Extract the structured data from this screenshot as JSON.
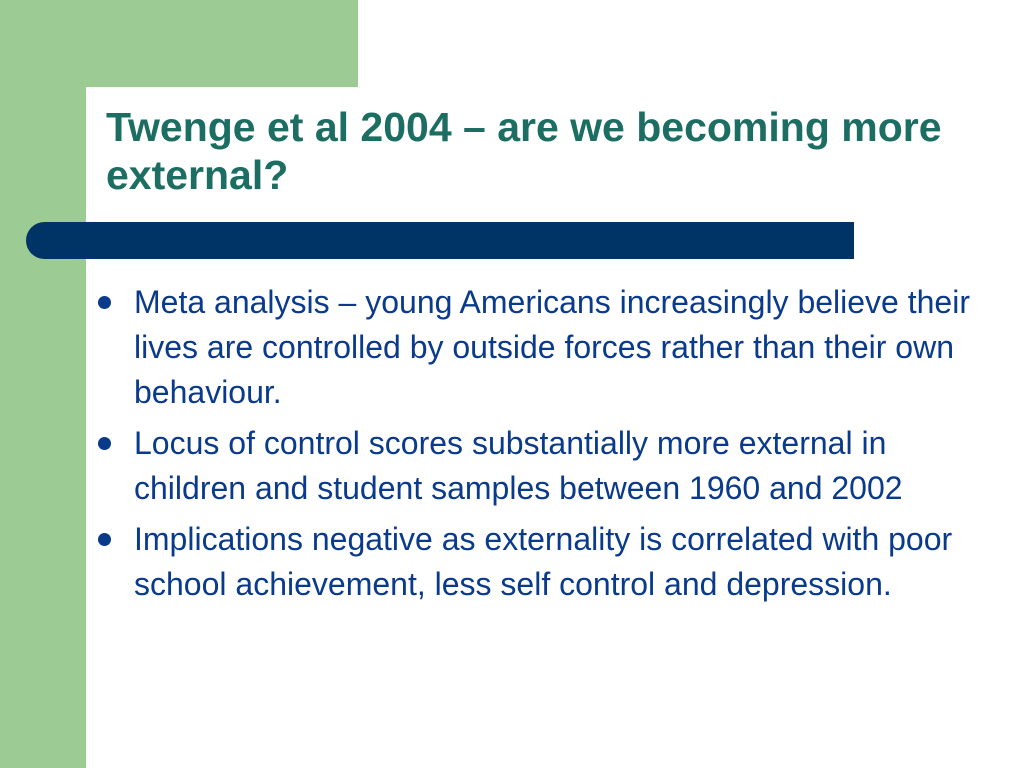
{
  "slide": {
    "title": "Twenge et al 2004 – are we becoming more external?",
    "bullets": [
      "Meta analysis – young Americans increasingly believe their lives are controlled by outside forces rather than their own behaviour.",
      "Locus of control scores substantially more external in children and student samples between 1960 and 2002",
      "Implications negative as externality is correlated with poor school achievement, less self control and depression."
    ]
  },
  "colors": {
    "accent_green": "#9ccb94",
    "title_teal": "#1c6e62",
    "bar_navy": "#003366",
    "text_blue": "#0a3a8c"
  }
}
